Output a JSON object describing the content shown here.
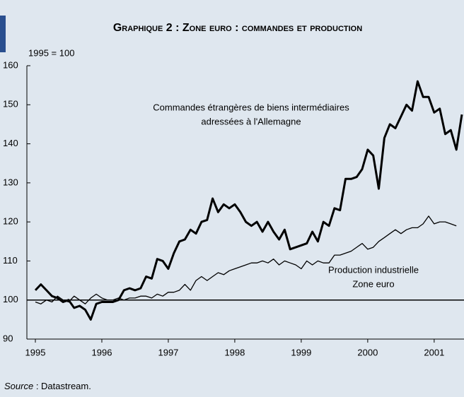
{
  "chart_data": {
    "type": "line",
    "title": "Graphique 2 : Zone euro : commandes et production",
    "subtitle": "1995 = 100",
    "categories": [
      "1995",
      null,
      null,
      null,
      null,
      null,
      null,
      null,
      null,
      null,
      null,
      null,
      "1996",
      null,
      null,
      null,
      null,
      null,
      null,
      null,
      null,
      null,
      null,
      null,
      "1997",
      null,
      null,
      null,
      null,
      null,
      null,
      null,
      null,
      null,
      null,
      null,
      "1998",
      null,
      null,
      null,
      null,
      null,
      null,
      null,
      null,
      null,
      null,
      null,
      "1999",
      null,
      null,
      null,
      null,
      null,
      null,
      null,
      null,
      null,
      null,
      null,
      "2000",
      null,
      null,
      null,
      null,
      null,
      null,
      null,
      null,
      null,
      null,
      null,
      "2001",
      null,
      null,
      null,
      null,
      null
    ],
    "series": [
      {
        "name": "Commandes étrangères de biens intermédiaires adressées à l'Allemagne",
        "label_lines": [
          "Commandes étrangères de biens intermédiaires",
          "adressées à l'Allemagne"
        ],
        "color": "#000000",
        "width": 3,
        "values": [
          102.5,
          104,
          102.5,
          101,
          100.5,
          99.5,
          100,
          98,
          98.5,
          97.5,
          95,
          99,
          99.5,
          99.5,
          99.5,
          100,
          102.5,
          103,
          102.5,
          103,
          106,
          105.5,
          110.5,
          110,
          108,
          112,
          115,
          115.5,
          118,
          117,
          120,
          120.5,
          126,
          122.5,
          124.5,
          123.5,
          124.5,
          122.5,
          120,
          119,
          120,
          117.5,
          120,
          117.5,
          115.5,
          118,
          113,
          113.5,
          114,
          114.5,
          117.5,
          115,
          120,
          119,
          123.5,
          123,
          131,
          131,
          131.5,
          133.5,
          138.5,
          137,
          128.5,
          141.5,
          145,
          144,
          147,
          150,
          148.5,
          156,
          152,
          152,
          148,
          149,
          142.5,
          143.5,
          138.5,
          147.5
        ]
      },
      {
        "name": "Production industrielle Zone euro",
        "label_lines": [
          "Production industrielle",
          "Zone euro"
        ],
        "color": "#000000",
        "width": 1.3,
        "values": [
          99.5,
          99,
          100,
          99.5,
          101,
          100,
          99.5,
          101,
          100,
          99,
          100.5,
          101.5,
          100.5,
          100,
          100,
          100.5,
          100,
          100.5,
          100.5,
          101,
          101,
          100.5,
          101.5,
          101,
          102,
          102,
          102.5,
          104,
          102.5,
          105,
          106,
          105,
          106,
          107,
          106.5,
          107.5,
          108,
          108.5,
          109,
          109.5,
          109.5,
          110,
          109.5,
          110.5,
          109,
          110,
          109.5,
          109,
          108,
          110,
          109,
          110,
          109.5,
          109.5,
          111.5,
          111.5,
          112,
          112.5,
          113.5,
          114.5,
          113,
          113.5,
          115,
          116,
          117,
          118,
          117,
          118,
          118.5,
          118.5,
          119.5,
          121.5,
          119.5,
          120,
          120,
          119.5,
          119,
          null
        ]
      }
    ],
    "reference_line": 100,
    "ylim": [
      90,
      160
    ],
    "yticks": [
      90,
      100,
      110,
      120,
      130,
      140,
      150,
      160
    ],
    "source_label": "Source",
    "source_text": " : Datastream."
  }
}
